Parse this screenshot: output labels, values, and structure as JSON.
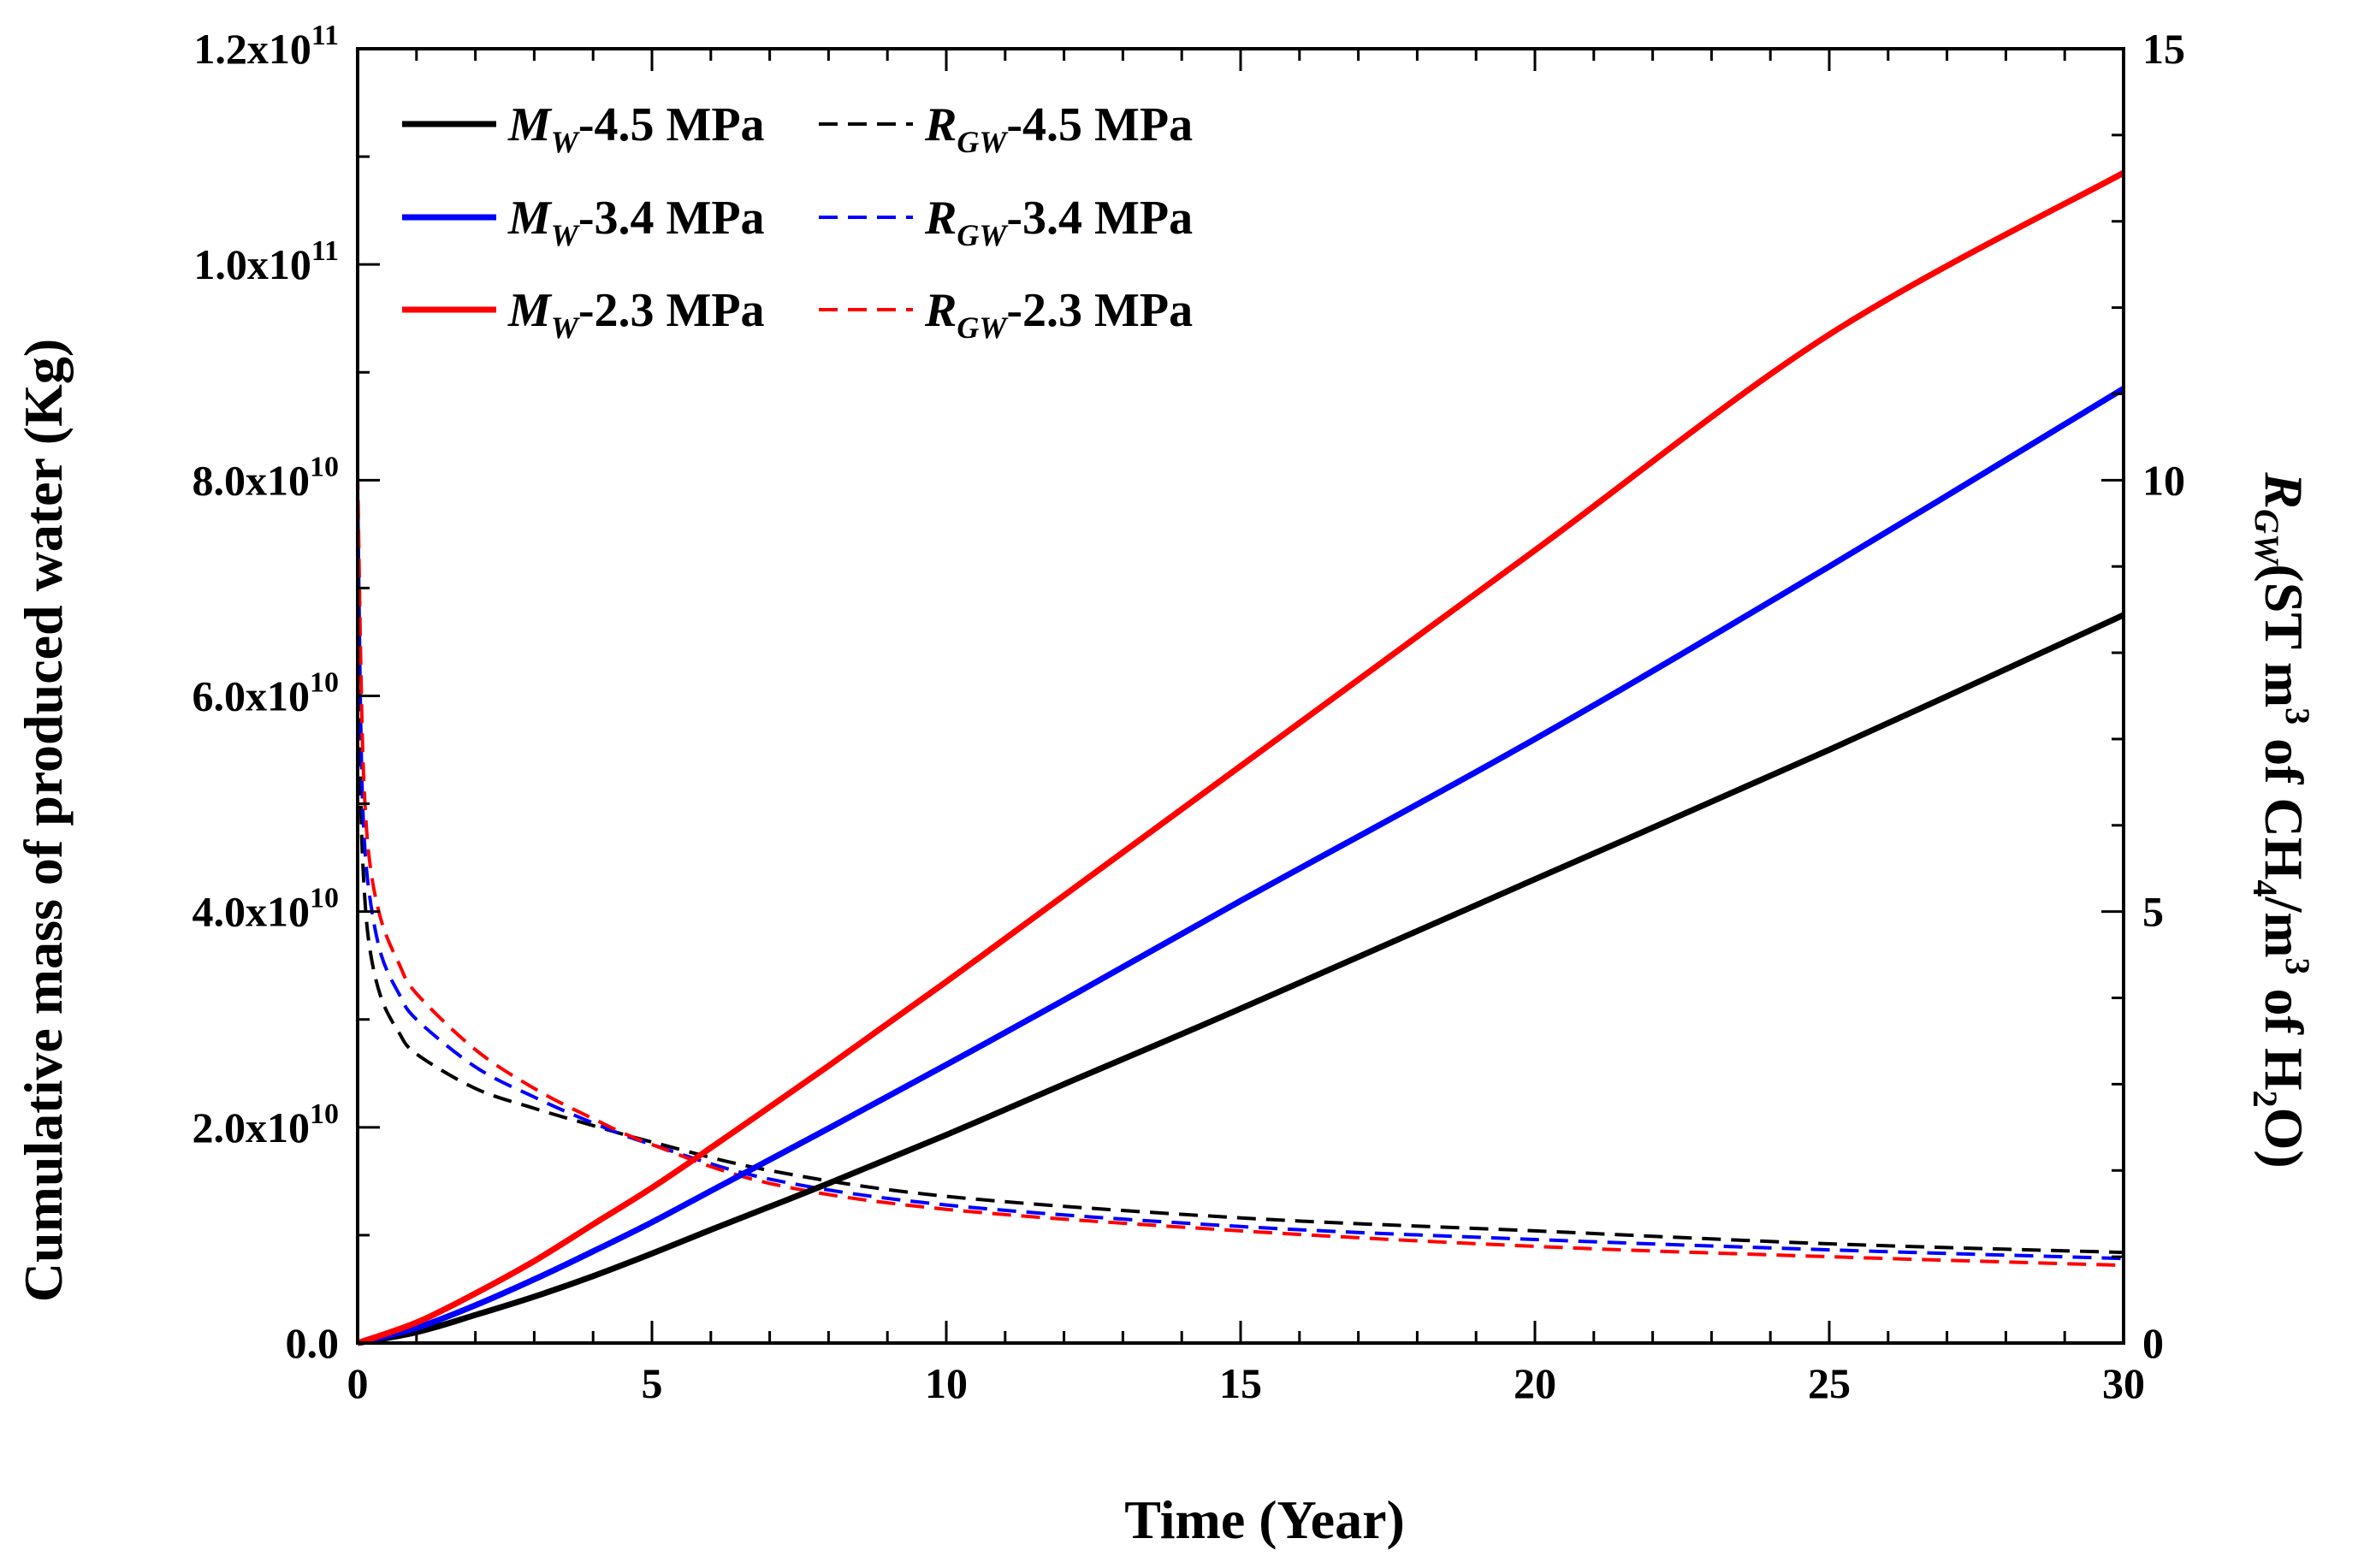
{
  "chart_data": {
    "type": "line",
    "xlabel": "Time (Year)",
    "ylabel": "Cumulative mass of produced water (Kg)",
    "y2label": {
      "sym": "R",
      "sub": "GW",
      "paren_open": "(ST m",
      "sup1": "3",
      "mid": " of CH",
      "sub2": "4",
      "slash": "/m",
      "sup2": "3",
      "tail": " of H",
      "sub3": "2",
      "close": "O)"
    },
    "xlim": [
      0,
      30
    ],
    "ylim": [
      0,
      120000000000.0
    ],
    "y2lim": [
      0,
      15
    ],
    "x_ticks": [
      "0",
      "5",
      "10",
      "15",
      "20",
      "25",
      "30"
    ],
    "y_ticks": [
      {
        "mant": "0.0",
        "exp": ""
      },
      {
        "mant": "2.0x10",
        "exp": "10"
      },
      {
        "mant": "4.0x10",
        "exp": "10"
      },
      {
        "mant": "6.0x10",
        "exp": "10"
      },
      {
        "mant": "8.0x10",
        "exp": "10"
      },
      {
        "mant": "1.0x10",
        "exp": "11"
      },
      {
        "mant": "1.2x10",
        "exp": "11"
      }
    ],
    "y2_ticks": [
      "0",
      "5",
      "10",
      "15"
    ],
    "legend_position": "top-left",
    "series": [
      {
        "name": "MW-4.5 MPa",
        "sym": "M",
        "sub": "W",
        "label": "-4.5 MPa",
        "axis": "left",
        "style": "solid",
        "color": "#000000",
        "x": [
          0,
          1,
          2,
          3,
          4,
          5,
          6,
          8,
          10,
          12,
          15,
          20,
          25,
          30
        ],
        "y": [
          0,
          1000000000.0,
          2600000000.0,
          4300000000.0,
          6200000000.0,
          8300000000.0,
          10500000000.0,
          14800000000.0,
          19300000000.0,
          24000000000.0,
          31000000000.0,
          43000000000.0,
          55000000000.0,
          67500000000.0
        ]
      },
      {
        "name": "RGW-4.5 MPa",
        "sym": "R",
        "sub": "GW",
        "label": "-4.5 MPa",
        "axis": "right",
        "style": "dashed",
        "color": "#000000",
        "x": [
          0,
          0.05,
          0.1,
          0.2,
          0.4,
          0.7,
          1,
          2,
          3,
          4,
          5,
          7,
          10,
          15,
          20,
          25,
          30
        ],
        "y": [
          9.6,
          6.5,
          5.4,
          4.6,
          4.0,
          3.6,
          3.35,
          2.95,
          2.72,
          2.52,
          2.33,
          2.0,
          1.7,
          1.45,
          1.3,
          1.15,
          1.05
        ]
      },
      {
        "name": "MW-3.4 MPa",
        "sym": "M",
        "sub": "W",
        "label": "-3.4 MPa",
        "axis": "left",
        "style": "solid",
        "color": "#0000ff",
        "x": [
          0,
          1,
          2,
          3,
          4,
          5,
          6,
          8,
          10,
          12,
          15,
          20,
          25,
          30
        ],
        "y": [
          0,
          1400000000.0,
          3500000000.0,
          5900000000.0,
          8500000000.0,
          11200000000.0,
          14100000000.0,
          19900000000.0,
          25800000000.0,
          31800000000.0,
          41000000000.0,
          56000000000.0,
          72000000000.0,
          88500000000.0
        ]
      },
      {
        "name": "RGW-3.4 MPa",
        "sym": "R",
        "sub": "GW",
        "label": "-3.4 MPa",
        "axis": "right",
        "style": "dashed",
        "color": "#0000ff",
        "x": [
          0,
          0.05,
          0.1,
          0.2,
          0.4,
          0.7,
          1,
          2,
          3,
          4,
          5,
          7,
          10,
          15,
          20,
          25,
          30
        ],
        "y": [
          9.9,
          7.3,
          6.0,
          5.2,
          4.5,
          4.05,
          3.75,
          3.2,
          2.85,
          2.55,
          2.3,
          1.9,
          1.6,
          1.35,
          1.2,
          1.08,
          0.98
        ]
      },
      {
        "name": "MW-2.3 MPa",
        "sym": "M",
        "sub": "W",
        "label": "-2.3 MPa",
        "axis": "left",
        "style": "solid",
        "color": "#ff0000",
        "x": [
          0,
          1,
          2,
          3,
          4,
          5,
          6,
          8,
          10,
          12,
          15,
          20,
          25,
          30
        ],
        "y": [
          0,
          1900000000.0,
          4600000000.0,
          7600000000.0,
          11000000000.0,
          14400000000.0,
          18100000000.0,
          25700000000.0,
          33500000000.0,
          41500000000.0,
          53500000000.0,
          73500000000.0,
          93500000000.0,
          108500000000.0
        ]
      },
      {
        "name": "RGW-2.3 MPa",
        "sym": "R",
        "sub": "GW",
        "label": "-2.3 MPa",
        "axis": "right",
        "style": "dashed",
        "color": "#ff0000",
        "x": [
          0,
          0.05,
          0.1,
          0.2,
          0.4,
          0.7,
          1,
          2,
          3,
          4,
          5,
          7,
          10,
          15,
          20,
          25,
          30
        ],
        "y": [
          10.1,
          8.0,
          6.6,
          5.6,
          4.9,
          4.4,
          4.05,
          3.4,
          2.95,
          2.6,
          2.3,
          1.85,
          1.55,
          1.3,
          1.12,
          1.0,
          0.9
        ]
      }
    ]
  }
}
